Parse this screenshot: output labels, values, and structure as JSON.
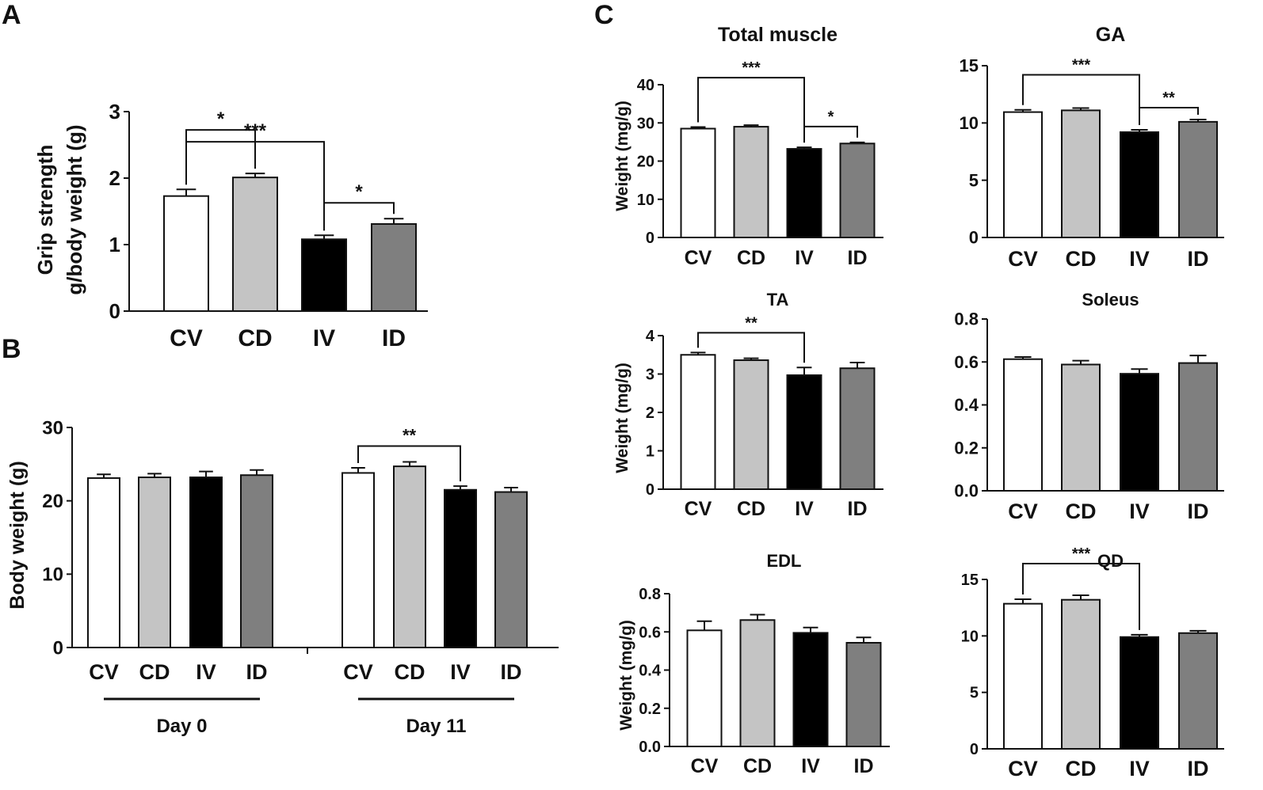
{
  "panel_labels": {
    "A": "A",
    "B": "B",
    "C": "C"
  },
  "colors": {
    "CV": "#ffffff",
    "CD": "#c4c4c4",
    "IV": "#000000",
    "ID": "#7f7f7f"
  },
  "chart_data": [
    {
      "id": "A",
      "type": "bar",
      "title": "",
      "ylabel": [
        "Grip strength",
        "g/body weight (g)"
      ],
      "ylim": [
        0,
        3
      ],
      "yticks": [
        "0",
        "1",
        "2",
        "3"
      ],
      "categories": [
        "CV",
        "CD",
        "IV",
        "ID"
      ],
      "values": [
        1.73,
        2.01,
        1.08,
        1.31
      ],
      "errors": [
        0.1,
        0.06,
        0.06,
        0.08
      ],
      "significance": [
        {
          "from": "CV",
          "to": "CD",
          "label": "*"
        },
        {
          "from": "CV",
          "to": "IV",
          "label": "***"
        },
        {
          "from": "IV",
          "to": "ID",
          "label": "*"
        }
      ]
    },
    {
      "id": "B",
      "type": "bar",
      "title": "",
      "ylabel": [
        "Body weight (g)"
      ],
      "ylim": [
        0,
        30
      ],
      "yticks": [
        "0",
        "10",
        "20",
        "30"
      ],
      "groups": [
        {
          "name": "Day 0",
          "categories": [
            "CV",
            "CD",
            "IV",
            "ID"
          ],
          "values": [
            23.1,
            23.2,
            23.2,
            23.5
          ],
          "errors": [
            0.5,
            0.5,
            0.8,
            0.7
          ]
        },
        {
          "name": "Day 11",
          "categories": [
            "CV",
            "CD",
            "IV",
            "ID"
          ],
          "values": [
            23.8,
            24.7,
            21.5,
            21.2
          ],
          "errors": [
            0.7,
            0.6,
            0.5,
            0.6
          ]
        }
      ],
      "significance": [
        {
          "group": "Day 11",
          "from": "CV",
          "to": "IV",
          "label": "**"
        }
      ]
    },
    {
      "id": "C-total",
      "type": "bar",
      "title": "Total muscle",
      "ylabel": [
        "Weight (mg/g)"
      ],
      "ylim": [
        0,
        40
      ],
      "yticks": [
        "0",
        "10",
        "20",
        "30",
        "40"
      ],
      "categories": [
        "CV",
        "CD",
        "IV",
        "ID"
      ],
      "values": [
        28.5,
        29.0,
        23.2,
        24.6
      ],
      "errors": [
        0.4,
        0.4,
        0.4,
        0.3
      ],
      "significance": [
        {
          "from": "CV",
          "to": "IV",
          "label": "***"
        },
        {
          "from": "IV",
          "to": "ID",
          "label": "*"
        }
      ]
    },
    {
      "id": "C-GA",
      "type": "bar",
      "title": "GA",
      "ylabel": [],
      "ylim": [
        0,
        15
      ],
      "yticks": [
        "0",
        "5",
        "10",
        "15"
      ],
      "categories": [
        "CV",
        "CD",
        "IV",
        "ID"
      ],
      "values": [
        10.95,
        11.1,
        9.2,
        10.1
      ],
      "errors": [
        0.2,
        0.2,
        0.2,
        0.2
      ],
      "significance": [
        {
          "from": "CV",
          "to": "IV",
          "label": "***"
        },
        {
          "from": "IV",
          "to": "ID",
          "label": "**"
        }
      ]
    },
    {
      "id": "C-TA",
      "type": "bar",
      "title": "TA",
      "ylabel": [
        "Weight (mg/g)"
      ],
      "ylim": [
        0,
        4
      ],
      "yticks": [
        "0",
        "1",
        "2",
        "3",
        "4"
      ],
      "categories": [
        "CV",
        "CD",
        "IV",
        "ID"
      ],
      "values": [
        3.5,
        3.36,
        2.97,
        3.15
      ],
      "errors": [
        0.06,
        0.05,
        0.2,
        0.15
      ],
      "significance": [
        {
          "from": "CV",
          "to": "IV",
          "label": "**"
        }
      ]
    },
    {
      "id": "C-soleus",
      "type": "bar",
      "title": "Soleus",
      "ylabel": [],
      "ylim": [
        0,
        0.8
      ],
      "yticks": [
        "0.0",
        "0.2",
        "0.4",
        "0.6",
        "0.8"
      ],
      "categories": [
        "CV",
        "CD",
        "IV",
        "ID"
      ],
      "values": [
        0.613,
        0.588,
        0.545,
        0.595
      ],
      "errors": [
        0.01,
        0.018,
        0.022,
        0.035
      ],
      "significance": []
    },
    {
      "id": "C-EDL",
      "type": "bar",
      "title": "EDL",
      "ylabel": [
        "Weight (mg/g)"
      ],
      "ylim": [
        0,
        0.8
      ],
      "yticks": [
        "0.0",
        "0.2",
        "0.4",
        "0.6",
        "0.8"
      ],
      "categories": [
        "CV",
        "CD",
        "IV",
        "ID"
      ],
      "values": [
        0.608,
        0.662,
        0.595,
        0.543
      ],
      "errors": [
        0.048,
        0.028,
        0.028,
        0.028
      ],
      "significance": []
    },
    {
      "id": "C-QD",
      "type": "bar",
      "title": "QD",
      "ylabel": [],
      "ylim": [
        0,
        15
      ],
      "yticks": [
        "0",
        "5",
        "10",
        "15"
      ],
      "categories": [
        "CV",
        "CD",
        "IV",
        "ID"
      ],
      "values": [
        12.85,
        13.2,
        9.9,
        10.25
      ],
      "errors": [
        0.4,
        0.4,
        0.2,
        0.2
      ],
      "significance": [
        {
          "from": "CV",
          "to": "IV",
          "label": "***"
        }
      ]
    }
  ]
}
